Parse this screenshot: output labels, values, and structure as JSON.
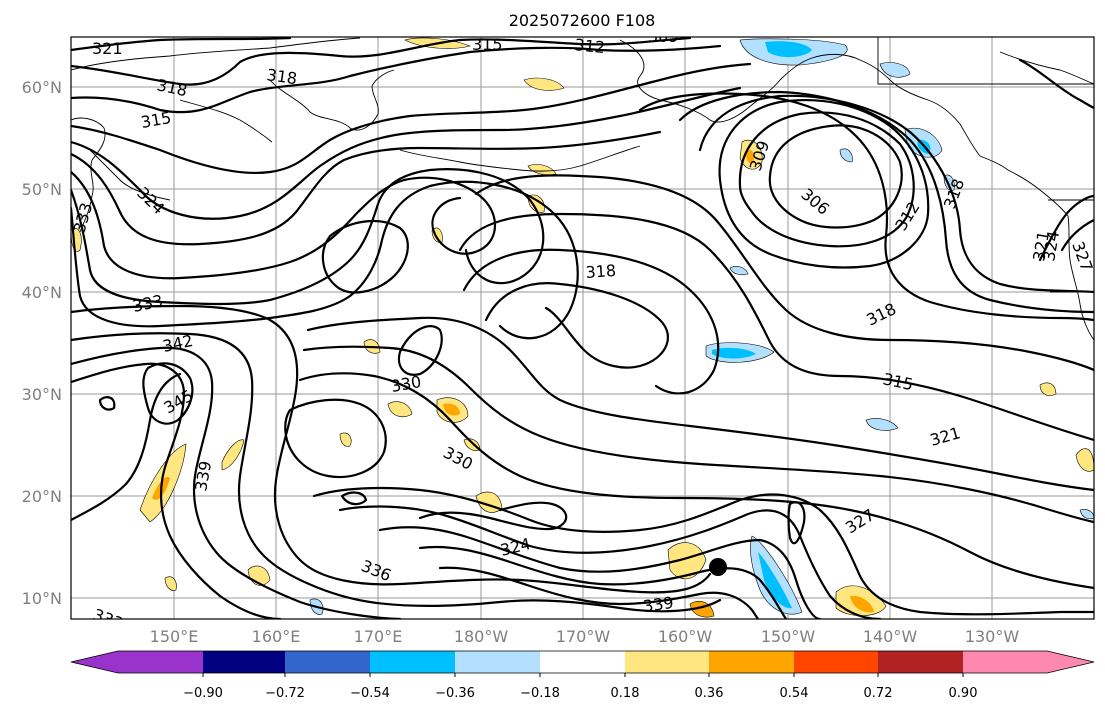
{
  "title": "2025072600 F108",
  "lat_labels": [
    "60°N",
    "50°N",
    "40°N",
    "30°N",
    "20°N",
    "10°N"
  ],
  "lon_labels": [
    "150°E",
    "160°E",
    "170°E",
    "180°W",
    "170°W",
    "160°W",
    "150°W",
    "140°W",
    "130°W"
  ],
  "colorbar": {
    "ticks": [
      "−0.90",
      "−0.72",
      "−0.54",
      "−0.36",
      "−0.18",
      "0.18",
      "0.36",
      "0.54",
      "0.72",
      "0.90"
    ],
    "colors": [
      "#9933cc",
      "#000080",
      "#3366cc",
      "#00bfff",
      "#b3e0ff",
      "#ffffff",
      "#ffe680",
      "#ffa500",
      "#ff4500",
      "#b22222",
      "#ff88b0"
    ]
  },
  "contour_labels": [
    "321",
    "318",
    "315",
    "312",
    "309",
    "318",
    "315",
    "324",
    "333",
    "333",
    "342",
    "345",
    "339",
    "330",
    "330",
    "336",
    "324",
    "318",
    "306",
    "309",
    "312",
    "318",
    "318",
    "315",
    "321",
    "321",
    "324",
    "327",
    "327",
    "339",
    "333"
  ],
  "marker": "storm-position"
}
